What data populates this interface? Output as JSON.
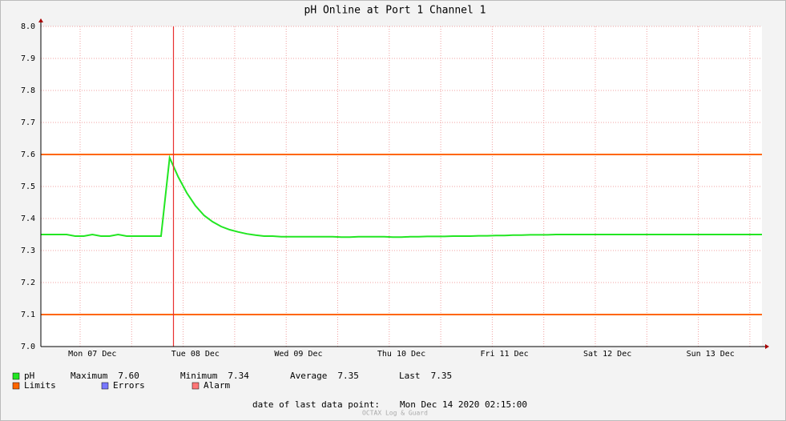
{
  "chart_data": {
    "type": "line",
    "title": "pH Online at Port 1 Channel 1",
    "categories": [
      null,
      null,
      null,
      null,
      null,
      null,
      "Mon 07 Dec",
      null,
      null,
      null,
      null,
      null,
      null,
      null,
      null,
      null,
      null,
      null,
      "Tue 08 Dec",
      null,
      null,
      null,
      null,
      null,
      null,
      null,
      null,
      null,
      null,
      null,
      "Wed 09 Dec",
      null,
      null,
      null,
      null,
      null,
      null,
      null,
      null,
      null,
      null,
      null,
      "Thu 10 Dec",
      null,
      null,
      null,
      null,
      null,
      null,
      null,
      null,
      null,
      null,
      null,
      "Fri 11 Dec",
      null,
      null,
      null,
      null,
      null,
      null,
      null,
      null,
      null,
      null,
      null,
      "Sat 12 Dec",
      null,
      null,
      null,
      null,
      null,
      null,
      null,
      null,
      null,
      null,
      null,
      "Sun 13 Dec",
      null,
      null,
      null,
      null,
      null,
      null
    ],
    "series": [
      {
        "name": "pH",
        "color": "#22e622",
        "values": [
          7.35,
          7.35,
          7.35,
          7.35,
          7.345,
          7.345,
          7.35,
          7.345,
          7.345,
          7.35,
          7.345,
          7.345,
          7.345,
          7.345,
          7.345,
          7.59,
          7.53,
          7.48,
          7.44,
          7.41,
          7.39,
          7.375,
          7.365,
          7.358,
          7.352,
          7.348,
          7.345,
          7.345,
          7.343,
          7.343,
          7.343,
          7.343,
          7.343,
          7.343,
          7.343,
          7.342,
          7.342,
          7.343,
          7.343,
          7.343,
          7.343,
          7.342,
          7.342,
          7.343,
          7.343,
          7.344,
          7.344,
          7.344,
          7.345,
          7.345,
          7.345,
          7.346,
          7.346,
          7.347,
          7.347,
          7.348,
          7.348,
          7.349,
          7.349,
          7.349,
          7.35,
          7.35,
          7.35,
          7.35,
          7.35,
          7.35,
          7.35,
          7.35,
          7.35,
          7.35,
          7.35,
          7.35,
          7.35,
          7.35,
          7.35,
          7.35,
          7.35,
          7.35,
          7.35,
          7.35,
          7.35,
          7.35,
          7.35,
          7.35,
          7.35
        ]
      }
    ],
    "limits": {
      "name": "Limits",
      "color": "#ff6600",
      "values": [
        7.6,
        7.1
      ]
    },
    "errors": {
      "name": "Errors",
      "color": "#7777ff"
    },
    "alarm": {
      "name": "Alarm",
      "color": "#ff7777"
    },
    "stats": [
      {
        "label": "Maximum",
        "value": "7.60"
      },
      {
        "label": "Minimum",
        "value": "7.34"
      },
      {
        "label": "Average",
        "value": "7.35"
      },
      {
        "label": "Last",
        "value": "7.35"
      }
    ],
    "ylim": [
      7.0,
      8.0
    ],
    "yticks": [
      {
        "value": 7.0,
        "label": "7.0"
      },
      7.1,
      7.2,
      7.3,
      7.4,
      7.5,
      7.6,
      7.7,
      7.8,
      7.9,
      {
        "value": 8.0,
        "label": "8.0"
      }
    ],
    "grid": true,
    "footer": {
      "label": "date of last data point:",
      "value": "Mon Dec 14 2020 02:15:00"
    },
    "watermark": "OCTAX Log & Guard"
  }
}
